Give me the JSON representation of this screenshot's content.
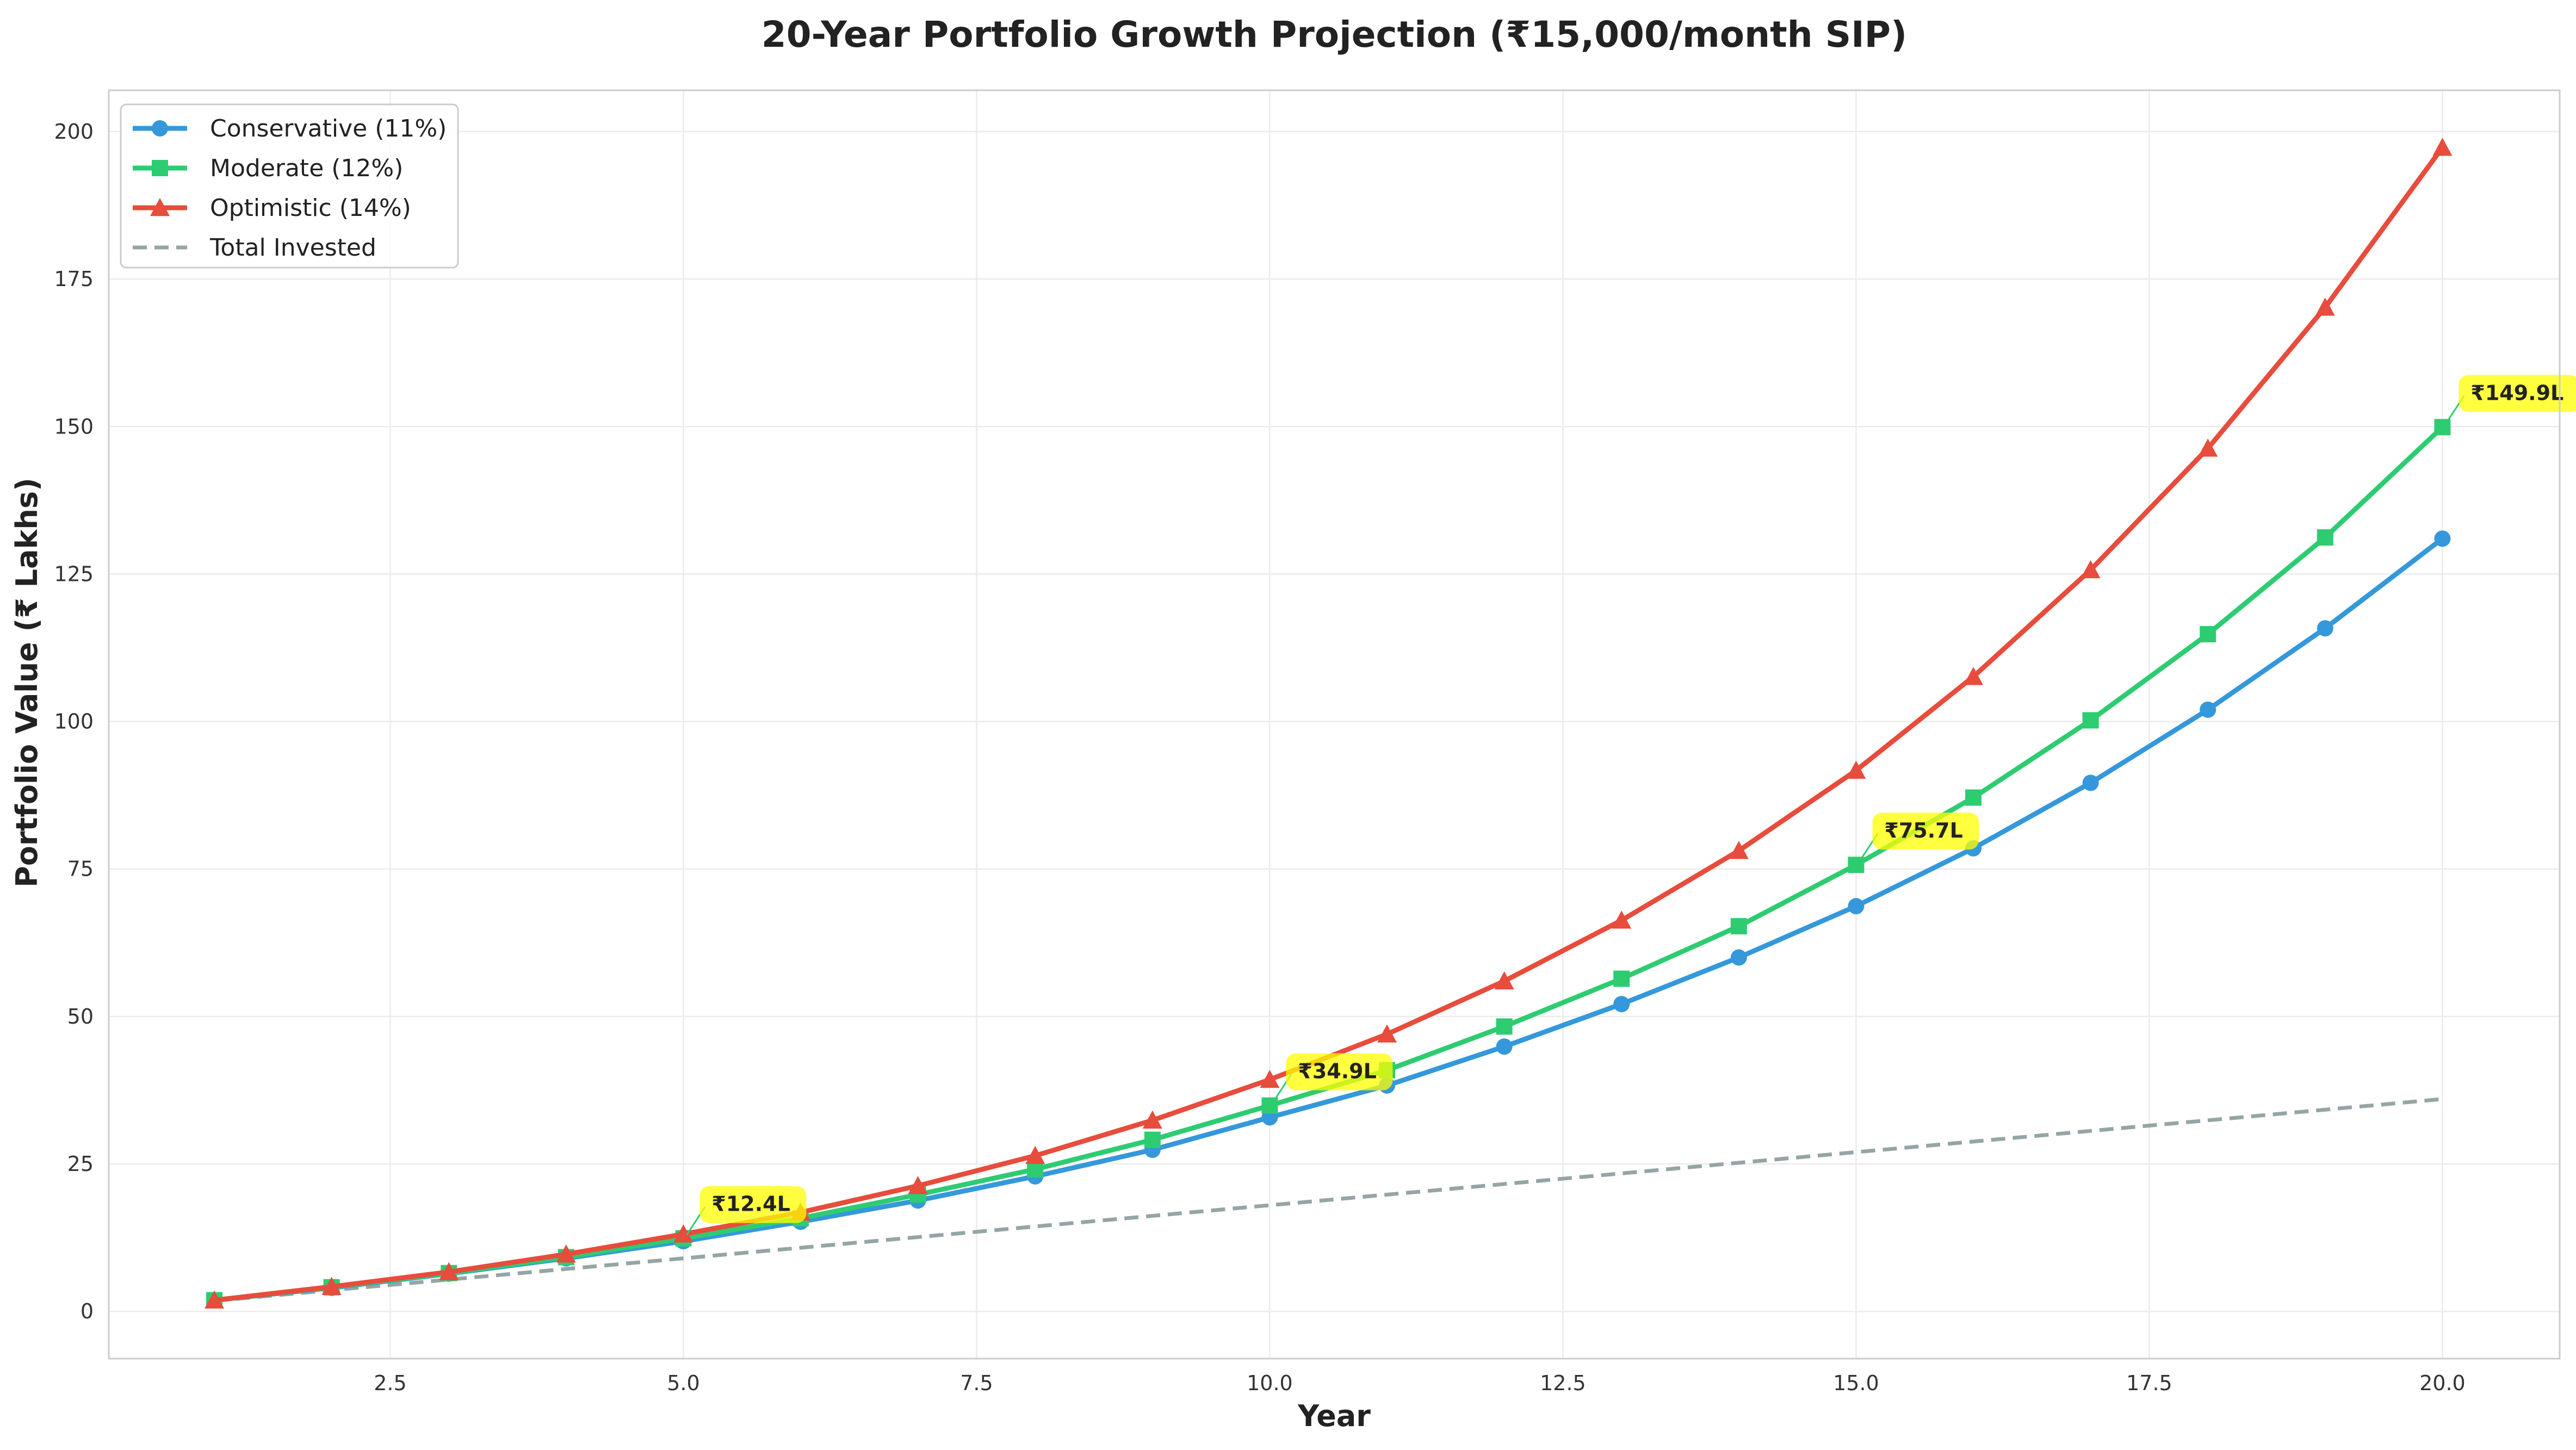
{
  "chart_data": {
    "type": "line",
    "title": "20-Year Portfolio Growth Projection (₹15,000/month SIP)",
    "xlabel": "Year",
    "ylabel": "Portfolio Value (₹ Lakhs)",
    "xlim": [
      0.1,
      21.0
    ],
    "ylim": [
      -8,
      207
    ],
    "xticks": [
      2.5,
      5.0,
      7.5,
      10.0,
      12.5,
      15.0,
      17.5,
      20.0
    ],
    "xtick_labels": [
      "2.5",
      "5.0",
      "7.5",
      "10.0",
      "12.5",
      "15.0",
      "17.5",
      "20.0"
    ],
    "yticks": [
      0,
      25,
      50,
      75,
      100,
      125,
      150,
      175,
      200
    ],
    "ytick_labels": [
      "0",
      "25",
      "50",
      "75",
      "100",
      "125",
      "150",
      "175",
      "200"
    ],
    "grid": true,
    "legend_position": "top-left",
    "x": [
      1,
      2,
      3,
      4,
      5,
      6,
      7,
      8,
      9,
      10,
      11,
      12,
      13,
      14,
      15,
      16,
      17,
      18,
      19,
      20
    ],
    "series": [
      {
        "name": "Conservative (11%)",
        "color": "#3498db",
        "marker": "circle",
        "style": "solid",
        "values": [
          1.9,
          4.0,
          6.4,
          9.0,
          11.9,
          15.2,
          18.8,
          22.9,
          27.4,
          32.9,
          38.3,
          44.9,
          52.1,
          60.0,
          68.7,
          78.5,
          89.6,
          102.0,
          115.8,
          131.0
        ]
      },
      {
        "name": "Moderate (12%)",
        "color": "#2ecc71",
        "marker": "square",
        "style": "solid",
        "values": [
          1.9,
          4.1,
          6.5,
          9.2,
          12.4,
          15.8,
          19.8,
          24.1,
          29.1,
          34.9,
          40.9,
          48.3,
          56.4,
          65.3,
          75.7,
          87.1,
          100.2,
          114.8,
          131.2,
          149.9
        ]
      },
      {
        "name": "Optimistic (14%)",
        "color": "#e74c3c",
        "marker": "triangle",
        "style": "solid",
        "values": [
          1.9,
          4.2,
          6.7,
          9.7,
          13.1,
          16.8,
          21.3,
          26.4,
          32.4,
          39.3,
          47.0,
          56.0,
          66.3,
          78.1,
          91.7,
          107.6,
          125.7,
          146.3,
          170.2,
          197.3
        ]
      },
      {
        "name": "Total Invested",
        "color": "#95a5a6",
        "marker": "none",
        "style": "dashed",
        "values": [
          1.8,
          3.6,
          5.4,
          7.2,
          9.0,
          10.8,
          12.6,
          14.4,
          16.2,
          18.0,
          19.8,
          21.6,
          23.4,
          25.2,
          27.0,
          28.8,
          30.6,
          32.4,
          34.2,
          36.0
        ]
      }
    ],
    "annotations": [
      {
        "x": 5,
        "y": 12.4,
        "text": "₹12.4L"
      },
      {
        "x": 10,
        "y": 34.9,
        "text": "₹34.9L"
      },
      {
        "x": 15,
        "y": 75.7,
        "text": "₹75.7L"
      },
      {
        "x": 20,
        "y": 149.9,
        "text": "₹149.9L"
      }
    ],
    "annotation_style": {
      "background": "#ffff00",
      "arrow_color": "#2ecc71"
    }
  }
}
